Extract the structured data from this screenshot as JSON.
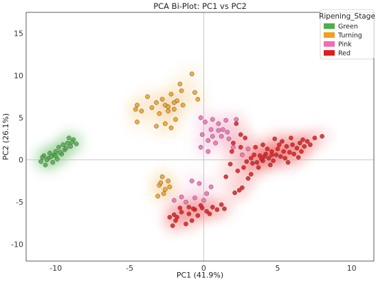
{
  "chart_data": {
    "type": "scatter",
    "title": "PCA Bi-Plot: PC1 vs PC2",
    "xlabel": "PC1 (41.9%)",
    "ylabel": "PC2 (26.1%)",
    "xlim": [
      -12,
      11.5
    ],
    "ylim": [
      -12,
      17.5
    ],
    "xticks": [
      -10,
      -5,
      0,
      5,
      10
    ],
    "yticks": [
      -10,
      -5,
      0,
      5,
      10,
      15
    ],
    "grid": false,
    "reference_lines": {
      "x": 0,
      "y": 0
    },
    "legend": {
      "title": "Ripening_Stage",
      "placement": "top-right",
      "entries": [
        "Green",
        "Turning",
        "Pink",
        "Red"
      ]
    },
    "colors": {
      "Green": "#4daf4a",
      "Turning": "#f0a020",
      "Pink": "#f06db0",
      "Red": "#e41a1c"
    },
    "density_shading": true,
    "series": [
      {
        "name": "Green",
        "points": [
          [
            -11.0,
            -0.2
          ],
          [
            -10.8,
            0.5
          ],
          [
            -10.7,
            -0.6
          ],
          [
            -10.5,
            0.2
          ],
          [
            -10.4,
            0.8
          ],
          [
            -10.2,
            -0.3
          ],
          [
            -10.1,
            0.6
          ],
          [
            -10.0,
            1.0
          ],
          [
            -9.9,
            0.1
          ],
          [
            -9.8,
            1.5
          ],
          [
            -9.6,
            0.7
          ],
          [
            -9.5,
            1.8
          ],
          [
            -9.4,
            1.2
          ],
          [
            -9.2,
            2.0
          ],
          [
            -9.0,
            1.6
          ],
          [
            -8.8,
            2.4
          ],
          [
            -8.6,
            1.9
          ],
          [
            -10.6,
            0.0
          ],
          [
            -10.3,
            0.4
          ],
          [
            -9.7,
            0.9
          ],
          [
            -9.3,
            1.4
          ],
          [
            -8.9,
            2.1
          ],
          [
            -10.9,
            0.3
          ],
          [
            -9.1,
            2.6
          ],
          [
            -10.0,
            0.5
          ]
        ]
      },
      {
        "name": "Turning",
        "points": [
          [
            -4.5,
            6.5
          ],
          [
            -4.6,
            6.0
          ],
          [
            -4.2,
            5.8
          ],
          [
            -4.5,
            4.5
          ],
          [
            -3.8,
            7.5
          ],
          [
            -3.5,
            6.2
          ],
          [
            -3.2,
            6.8
          ],
          [
            -3.0,
            5.5
          ],
          [
            -2.8,
            7.2
          ],
          [
            -2.6,
            6.5
          ],
          [
            -2.4,
            5.8
          ],
          [
            -2.2,
            7.8
          ],
          [
            -2.0,
            6.0
          ],
          [
            -1.8,
            7.0
          ],
          [
            -1.5,
            8.2
          ],
          [
            -1.4,
            6.5
          ],
          [
            -0.8,
            10.2
          ],
          [
            -0.6,
            8.0
          ],
          [
            -0.4,
            7.2
          ],
          [
            -3.2,
            4.0
          ],
          [
            -2.6,
            4.3
          ],
          [
            -1.9,
            4.8
          ],
          [
            -2.2,
            3.8
          ],
          [
            -2.4,
            6.3
          ],
          [
            -2.0,
            6.8
          ],
          [
            -2.8,
            -2.0
          ],
          [
            -3.0,
            -3.0
          ],
          [
            -2.6,
            -3.5
          ],
          [
            -2.4,
            -2.5
          ],
          [
            -2.7,
            -4.0
          ],
          [
            -3.1,
            -4.3
          ],
          [
            -2.3,
            -3.2
          ],
          [
            -2.9,
            -2.7
          ],
          [
            -1.6,
            9.0
          ]
        ]
      },
      {
        "name": "Pink",
        "points": [
          [
            -0.2,
            5.0
          ],
          [
            0.1,
            4.5
          ],
          [
            0.5,
            3.6
          ],
          [
            0.6,
            2.8
          ],
          [
            0.3,
            2.3
          ],
          [
            -0.1,
            3.0
          ],
          [
            1.0,
            3.5
          ],
          [
            1.3,
            3.6
          ],
          [
            1.0,
            4.3
          ],
          [
            0.6,
            4.8
          ],
          [
            1.5,
            4.7
          ],
          [
            1.6,
            3.3
          ],
          [
            2.2,
            4.8
          ],
          [
            1.2,
            2.8
          ],
          [
            0.8,
            2.0
          ],
          [
            1.7,
            2.5
          ],
          [
            3.0,
            1.3
          ],
          [
            2.0,
            1.5
          ],
          [
            2.6,
            0.6
          ],
          [
            -0.2,
            1.5
          ],
          [
            0.3,
            1.0
          ],
          [
            -0.8,
            -2.5
          ],
          [
            -0.3,
            -2.8
          ],
          [
            0.5,
            -3.2
          ],
          [
            0.2,
            -4.0
          ],
          [
            -0.6,
            -4.5
          ],
          [
            -1.2,
            -5.0
          ],
          [
            -1.5,
            -4.4
          ],
          [
            -2.0,
            -4.8
          ],
          [
            0.0,
            -4.8
          ]
        ]
      },
      {
        "name": "Red",
        "points": [
          [
            -1.0,
            -5.6
          ],
          [
            -0.6,
            -5.9
          ],
          [
            -0.2,
            -5.4
          ],
          [
            0.2,
            -6.1
          ],
          [
            0.6,
            -5.6
          ],
          [
            0.9,
            -5.9
          ],
          [
            1.2,
            -5.3
          ],
          [
            -1.8,
            -6.8
          ],
          [
            -1.5,
            -6.2
          ],
          [
            -0.8,
            -7.2
          ],
          [
            -0.4,
            -6.6
          ],
          [
            -1.2,
            -7.6
          ],
          [
            -2.1,
            -7.8
          ],
          [
            -2.3,
            -6.8
          ],
          [
            -1.6,
            -5.7
          ],
          [
            -0.1,
            -5.7
          ],
          [
            0.4,
            -6.4
          ],
          [
            1.4,
            -5.8
          ],
          [
            -1.9,
            -7.2
          ],
          [
            -1.0,
            -6.4
          ],
          [
            -0.7,
            -5.8
          ],
          [
            -2.0,
            -6.5
          ],
          [
            2.2,
            4.3
          ],
          [
            2.5,
            3.0
          ],
          [
            2.8,
            2.6
          ],
          [
            2.0,
            2.0
          ],
          [
            2.5,
            1.5
          ],
          [
            1.9,
            1.0
          ],
          [
            1.8,
            -0.5
          ],
          [
            2.3,
            -1.3
          ],
          [
            1.5,
            -2.0
          ],
          [
            2.7,
            -0.9
          ],
          [
            3.2,
            0.2
          ],
          [
            3.4,
            0.6
          ],
          [
            3.6,
            -0.3
          ],
          [
            3.8,
            0.5
          ],
          [
            4.0,
            -0.1
          ],
          [
            4.2,
            0.7
          ],
          [
            4.4,
            0.2
          ],
          [
            4.6,
            1.0
          ],
          [
            4.7,
            -0.1
          ],
          [
            4.9,
            0.6
          ],
          [
            5.0,
            1.3
          ],
          [
            5.2,
            0.4
          ],
          [
            5.4,
            1.0
          ],
          [
            5.5,
            0.2
          ],
          [
            5.6,
            1.6
          ],
          [
            5.8,
            0.9
          ],
          [
            6.0,
            1.8
          ],
          [
            6.1,
            0.7
          ],
          [
            6.3,
            1.4
          ],
          [
            6.5,
            2.0
          ],
          [
            6.6,
            1.0
          ],
          [
            6.8,
            1.6
          ],
          [
            7.0,
            2.2
          ],
          [
            7.2,
            1.8
          ],
          [
            7.5,
            2.6
          ],
          [
            8.0,
            2.8
          ],
          [
            3.5,
            1.5
          ],
          [
            4.0,
            1.8
          ],
          [
            4.8,
            2.5
          ],
          [
            5.3,
            2.2
          ],
          [
            5.9,
            2.6
          ],
          [
            3.7,
            -0.9
          ],
          [
            4.5,
            -0.6
          ],
          [
            3.3,
            -0.4
          ],
          [
            4.3,
            1.3
          ],
          [
            5.7,
            -0.3
          ],
          [
            6.4,
            0.3
          ],
          [
            3.0,
            -2.2
          ],
          [
            2.6,
            -3.3
          ],
          [
            2.4,
            -3.6
          ],
          [
            3.2,
            -1.7
          ],
          [
            2.1,
            -3.9
          ],
          [
            3.9,
            0.1
          ],
          [
            4.6,
            0.6
          ],
          [
            5.1,
            1.8
          ],
          [
            6.7,
            2.4
          ],
          [
            2.9,
            -0.2
          ],
          [
            4.1,
            0.4
          ]
        ]
      }
    ]
  }
}
